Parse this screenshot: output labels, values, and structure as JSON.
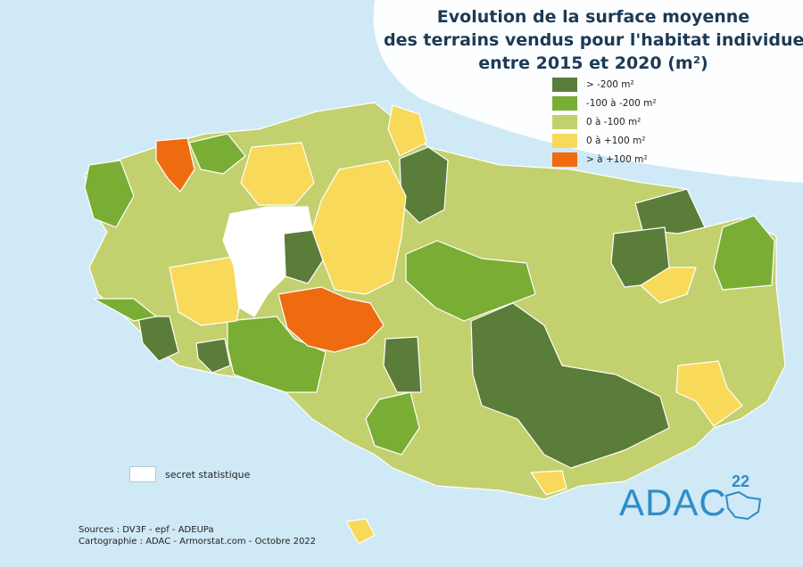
{
  "title": {
    "line1": "Evolution de la surface moyenne",
    "line2": "des terrains vendus pour l'habitat individuel",
    "line3": "entre 2015 et 2020 (m²)"
  },
  "legend": [
    {
      "label": "> -200 m²",
      "color": "#5b7d3a",
      "class": "lt-minus200"
    },
    {
      "label": "-100 à -200 m²",
      "color": "#7aad33",
      "class": "minus100-200"
    },
    {
      "label": "0 à -100 m²",
      "color": "#c3d06e",
      "class": "zero-minus100"
    },
    {
      "label": "0 à +100 m²",
      "color": "#f8d95a",
      "class": "zero-plus100"
    },
    {
      "label": "> à +100 m²",
      "color": "#ef6b10",
      "class": "gt-plus100"
    }
  ],
  "secret": {
    "label": "secret statistique",
    "color": "#ffffff"
  },
  "sources": {
    "line1": "Sources : DV3F - epf - ADEUPa",
    "line2": "Cartographie : ADAC - Armorstat.com - Octobre 2022"
  },
  "logo": {
    "text": "ADAC",
    "sup": "22"
  },
  "colors": {
    "sea": "#cfe9f6",
    "border": "#ffffff"
  }
}
